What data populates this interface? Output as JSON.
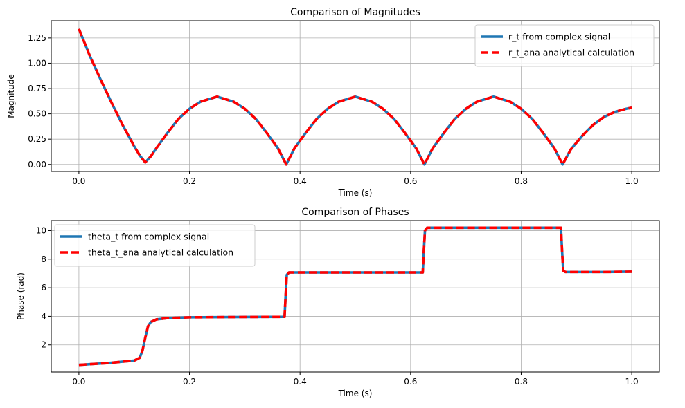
{
  "chart_data": [
    {
      "type": "line",
      "title": "Comparison of Magnitudes",
      "xlabel": "Time (s)",
      "ylabel": "Magnitude",
      "xlim": [
        -0.05,
        1.05
      ],
      "ylim": [
        -0.07,
        1.42
      ],
      "xticks": [
        "0.0",
        "0.2",
        "0.4",
        "0.6",
        "0.8",
        "1.0"
      ],
      "yticks": [
        "0.00",
        "0.25",
        "0.50",
        "0.75",
        "1.00",
        "1.25"
      ],
      "grid": true,
      "legend": "upper right",
      "series": [
        {
          "name": "r_t from complex signal",
          "color": "#1f77b4",
          "style": "solid",
          "x": [
            0,
            0.02,
            0.04,
            0.06,
            0.08,
            0.1,
            0.11,
            0.12,
            0.13,
            0.14,
            0.16,
            0.18,
            0.2,
            0.22,
            0.25,
            0.28,
            0.3,
            0.32,
            0.34,
            0.36,
            0.375,
            0.39,
            0.41,
            0.43,
            0.45,
            0.47,
            0.5,
            0.53,
            0.55,
            0.57,
            0.59,
            0.61,
            0.625,
            0.64,
            0.66,
            0.68,
            0.7,
            0.72,
            0.75,
            0.78,
            0.8,
            0.82,
            0.84,
            0.86,
            0.875,
            0.89,
            0.91,
            0.93,
            0.95,
            0.97,
            0.99,
            1.0
          ],
          "y": [
            1.34,
            1.07,
            0.83,
            0.6,
            0.38,
            0.18,
            0.09,
            0.02,
            0.08,
            0.16,
            0.31,
            0.45,
            0.55,
            0.62,
            0.67,
            0.62,
            0.55,
            0.45,
            0.31,
            0.16,
            0.0,
            0.16,
            0.31,
            0.45,
            0.55,
            0.62,
            0.67,
            0.62,
            0.55,
            0.45,
            0.31,
            0.16,
            0.0,
            0.16,
            0.31,
            0.45,
            0.55,
            0.62,
            0.67,
            0.62,
            0.55,
            0.45,
            0.31,
            0.16,
            0.0,
            0.15,
            0.28,
            0.39,
            0.47,
            0.52,
            0.55,
            0.56
          ]
        },
        {
          "name": "r_t_ana analytical calculation",
          "color": "#ff0000",
          "style": "dashed",
          "x": [
            0,
            0.02,
            0.04,
            0.06,
            0.08,
            0.1,
            0.11,
            0.12,
            0.13,
            0.14,
            0.16,
            0.18,
            0.2,
            0.22,
            0.25,
            0.28,
            0.3,
            0.32,
            0.34,
            0.36,
            0.375,
            0.39,
            0.41,
            0.43,
            0.45,
            0.47,
            0.5,
            0.53,
            0.55,
            0.57,
            0.59,
            0.61,
            0.625,
            0.64,
            0.66,
            0.68,
            0.7,
            0.72,
            0.75,
            0.78,
            0.8,
            0.82,
            0.84,
            0.86,
            0.875,
            0.89,
            0.91,
            0.93,
            0.95,
            0.97,
            0.99,
            1.0
          ],
          "y": [
            1.34,
            1.07,
            0.83,
            0.6,
            0.38,
            0.18,
            0.09,
            0.02,
            0.08,
            0.16,
            0.31,
            0.45,
            0.55,
            0.62,
            0.67,
            0.62,
            0.55,
            0.45,
            0.31,
            0.16,
            0.0,
            0.16,
            0.31,
            0.45,
            0.55,
            0.62,
            0.67,
            0.62,
            0.55,
            0.45,
            0.31,
            0.16,
            0.0,
            0.16,
            0.31,
            0.45,
            0.55,
            0.62,
            0.67,
            0.62,
            0.55,
            0.45,
            0.31,
            0.16,
            0.0,
            0.15,
            0.28,
            0.39,
            0.47,
            0.52,
            0.55,
            0.56
          ]
        }
      ]
    },
    {
      "type": "line",
      "title": "Comparison of Phases",
      "xlabel": "Time (s)",
      "ylabel": "Phase (rad)",
      "xlim": [
        -0.05,
        1.05
      ],
      "ylim": [
        0.1,
        10.7
      ],
      "xticks": [
        "0.0",
        "0.2",
        "0.4",
        "0.6",
        "0.8",
        "1.0"
      ],
      "yticks": [
        "2",
        "4",
        "6",
        "8",
        "10"
      ],
      "grid": true,
      "legend": "upper left",
      "series": [
        {
          "name": "theta_t from complex signal",
          "color": "#1f77b4",
          "style": "solid",
          "x": [
            0,
            0.05,
            0.1,
            0.11,
            0.115,
            0.12,
            0.125,
            0.13,
            0.14,
            0.16,
            0.2,
            0.3,
            0.372,
            0.374,
            0.376,
            0.38,
            0.5,
            0.622,
            0.624,
            0.626,
            0.63,
            0.75,
            0.872,
            0.874,
            0.876,
            0.88,
            0.95,
            1.0
          ],
          "y": [
            0.6,
            0.72,
            0.9,
            1.1,
            1.6,
            2.5,
            3.3,
            3.6,
            3.78,
            3.87,
            3.93,
            3.95,
            3.96,
            5.5,
            6.9,
            7.07,
            7.07,
            7.07,
            8.6,
            10.0,
            10.2,
            10.2,
            10.2,
            8.6,
            7.2,
            7.1,
            7.1,
            7.12
          ]
        },
        {
          "name": "theta_t_ana analytical calculation",
          "color": "#ff0000",
          "style": "dashed",
          "x": [
            0,
            0.05,
            0.1,
            0.11,
            0.115,
            0.12,
            0.125,
            0.13,
            0.14,
            0.16,
            0.2,
            0.3,
            0.372,
            0.374,
            0.376,
            0.38,
            0.5,
            0.622,
            0.624,
            0.626,
            0.63,
            0.75,
            0.872,
            0.874,
            0.876,
            0.88,
            0.95,
            1.0
          ],
          "y": [
            0.6,
            0.72,
            0.9,
            1.1,
            1.6,
            2.5,
            3.3,
            3.6,
            3.78,
            3.87,
            3.93,
            3.95,
            3.96,
            5.5,
            6.9,
            7.07,
            7.07,
            7.07,
            8.6,
            10.0,
            10.2,
            10.2,
            10.2,
            8.6,
            7.2,
            7.1,
            7.1,
            7.12
          ]
        }
      ]
    }
  ]
}
